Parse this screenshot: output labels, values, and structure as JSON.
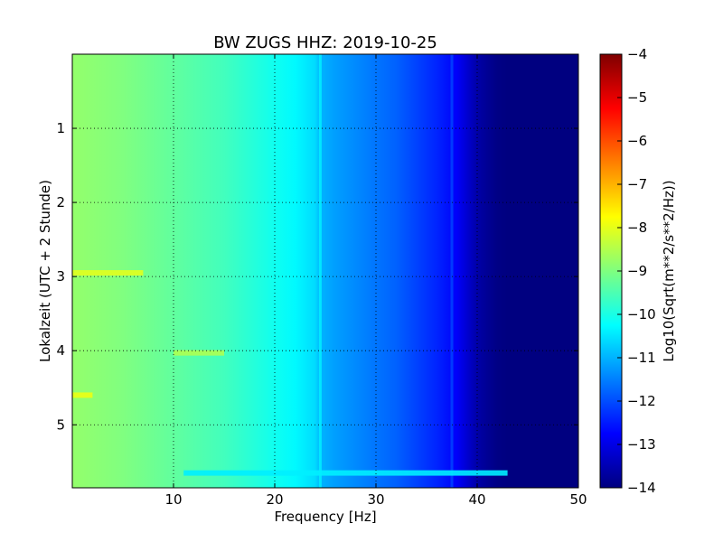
{
  "chart_data": {
    "type": "heatmap",
    "title": "BW ZUGS HHZ: 2019-10-25",
    "xlabel": "Frequency [Hz]",
    "ylabel": "Lokalzeit (UTC + 2 Stunde)",
    "colorbar_label": "Log10(Sqrt(m**2/s**2/Hz))",
    "xlim": [
      0,
      50
    ],
    "ylim": [
      5.85,
      0
    ],
    "clim": [
      -14,
      -4
    ],
    "colormap": "jet",
    "grid": true,
    "x_ticks": [
      "10",
      "20",
      "30",
      "40",
      "50"
    ],
    "y_ticks": [
      "1",
      "2",
      "3",
      "4",
      "5"
    ],
    "colorbar_ticks": [
      "-4",
      "-5",
      "-6",
      "-7",
      "-8",
      "-9",
      "-10",
      "-11",
      "-12",
      "-13",
      "-14"
    ],
    "profile": {
      "frequency_hz": [
        0,
        5,
        10,
        15,
        18,
        20,
        22,
        24,
        24.5,
        26,
        28,
        30,
        32,
        34,
        36,
        38,
        39,
        40,
        41,
        42,
        43,
        45,
        50
      ],
      "log10_amplitude": [
        -8.8,
        -9.0,
        -9.3,
        -9.6,
        -9.9,
        -10.1,
        -10.3,
        -10.6,
        -11.0,
        -11.2,
        -11.4,
        -11.6,
        -11.8,
        -12.1,
        -12.4,
        -12.8,
        -13.2,
        -13.6,
        -13.8,
        -13.95,
        -14.0,
        -14.0,
        -14.0
      ]
    },
    "features": [
      {
        "kind": "line",
        "frequency_hz": 24.5,
        "note": "vertical band"
      },
      {
        "kind": "line",
        "frequency_hz": 37.5,
        "note": "wandering narrow line"
      },
      {
        "kind": "burst",
        "time_h": 2.95,
        "frequency_range_hz": [
          0,
          7
        ]
      },
      {
        "kind": "burst",
        "time_h": 4.03,
        "frequency_range_hz": [
          10,
          15
        ]
      },
      {
        "kind": "burst",
        "time_h": 4.6,
        "frequency_range_hz": [
          0,
          2
        ]
      },
      {
        "kind": "burst",
        "time_h": 5.65,
        "frequency_range_hz": [
          11,
          43
        ]
      }
    ]
  }
}
